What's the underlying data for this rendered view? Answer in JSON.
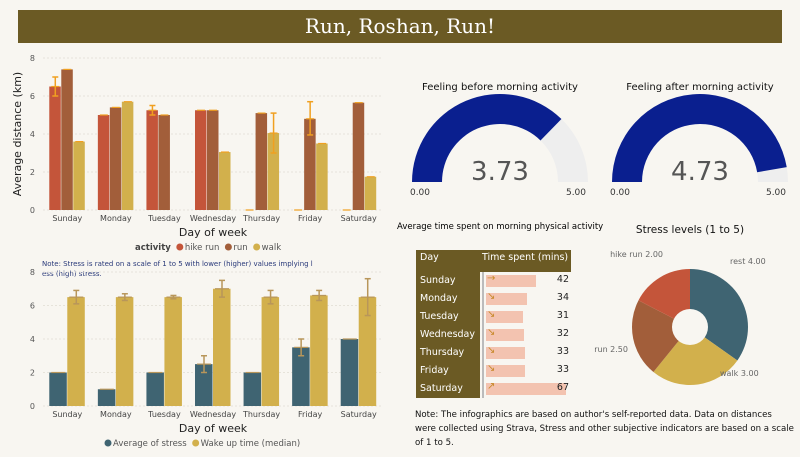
{
  "title": "Run, Roshan, Run!",
  "chart_data": [
    {
      "type": "bar",
      "title": "",
      "xlabel": "Day of week",
      "ylabel": "Average distance (km)",
      "ylim": [
        0,
        8
      ],
      "yticks": [
        "0",
        "2",
        "4",
        "6",
        "8"
      ],
      "categories": [
        "Sunday",
        "Monday",
        "Tuesday",
        "Wednesday",
        "Thursday",
        "Friday",
        "Saturday"
      ],
      "legend_title": "activity",
      "series": [
        {
          "name": "hike run",
          "color": "#c4553a",
          "values": [
            6.5,
            5.0,
            5.25,
            5.25,
            0,
            0,
            0
          ],
          "errors": [
            [
              6.0,
              7.0
            ],
            null,
            [
              5.0,
              5.5
            ],
            null,
            null,
            null,
            null
          ]
        },
        {
          "name": "run",
          "color": "#a25e3a",
          "values": [
            7.4,
            5.4,
            5.0,
            5.25,
            5.1,
            4.8,
            5.65
          ],
          "errors": [
            null,
            null,
            null,
            null,
            null,
            [
              3.95,
              5.7
            ],
            null
          ]
        },
        {
          "name": "walk",
          "color": "#d2b04c",
          "values": [
            3.6,
            5.7,
            null,
            3.05,
            4.05,
            3.5,
            1.75
          ],
          "errors": [
            null,
            null,
            null,
            null,
            [
              3.0,
              5.1
            ],
            null,
            null
          ]
        }
      ]
    },
    {
      "type": "bar",
      "title": "",
      "xlabel": "Day of week",
      "ylim": [
        0,
        8
      ],
      "yticks": [
        "0",
        "2",
        "4",
        "6",
        "8"
      ],
      "note": "Note: Stress is rated on a scale of 1 to 5 with lower (higher) values implying less (high) stress.",
      "categories": [
        "Sunday",
        "Monday",
        "Tuesday",
        "Wednesday",
        "Thursday",
        "Friday",
        "Saturday"
      ],
      "series": [
        {
          "name": "Average of stress",
          "color": "#3f6472",
          "values": [
            2,
            1,
            2,
            2.5,
            2,
            3.5,
            4
          ],
          "errors": [
            null,
            null,
            null,
            [
              2,
              3
            ],
            null,
            [
              3,
              4
            ],
            null
          ]
        },
        {
          "name": "Wake up time (median)",
          "color": "#d2b04c",
          "values": [
            6.5,
            6.5,
            6.5,
            7,
            6.5,
            6.6,
            6.5
          ],
          "errors": [
            [
              6.1,
              6.9
            ],
            [
              6.3,
              6.7
            ],
            [
              6.4,
              6.6
            ],
            [
              6.5,
              7.5
            ],
            [
              6.1,
              6.9
            ],
            [
              6.3,
              6.9
            ],
            [
              5.4,
              7.6
            ]
          ]
        }
      ]
    },
    {
      "type": "gauge",
      "title": "Feeling before morning activity",
      "value": 3.73,
      "value_label": "3.73",
      "min": 0,
      "max": 5,
      "min_label": "0.00",
      "max_label": "5.00"
    },
    {
      "type": "gauge",
      "title": "Feeling after morning activity",
      "value": 4.73,
      "value_label": "4.73",
      "min": 0,
      "max": 5,
      "min_label": "0.00",
      "max_label": "5.00"
    },
    {
      "type": "table",
      "title": "Average time spent on morning physical activity",
      "columns": [
        "Day",
        "Time spent (mins)"
      ],
      "rows": [
        {
          "day": "Sunday",
          "mins": 42,
          "arrow": "→"
        },
        {
          "day": "Monday",
          "mins": 34,
          "arrow": "↘"
        },
        {
          "day": "Tuesday",
          "mins": 31,
          "arrow": "↘"
        },
        {
          "day": "Wednesday",
          "mins": 32,
          "arrow": "↘"
        },
        {
          "day": "Thursday",
          "mins": 33,
          "arrow": "↘"
        },
        {
          "day": "Friday",
          "mins": 33,
          "arrow": "↘"
        },
        {
          "day": "Saturday",
          "mins": 67,
          "arrow": "↗"
        }
      ]
    },
    {
      "type": "pie",
      "title": "Stress levels (1 to 5)",
      "slices": [
        {
          "label": "rest",
          "value": 4.0,
          "text": "rest 4.00",
          "color": "#3f6472"
        },
        {
          "label": "walk",
          "value": 3.0,
          "text": "walk 3.00",
          "color": "#d2b04c"
        },
        {
          "label": "run",
          "value": 2.5,
          "text": "run 2.50",
          "color": "#a25e3a"
        },
        {
          "label": "hike run",
          "value": 2.0,
          "text": "hike run 2.00",
          "color": "#c4553a"
        }
      ]
    }
  ],
  "footnote": "Note: The infographics are based on author's self-reported data. Data on distances were collected using Strava, Stress and other subjective indicators are based on a scale of 1 to 5."
}
